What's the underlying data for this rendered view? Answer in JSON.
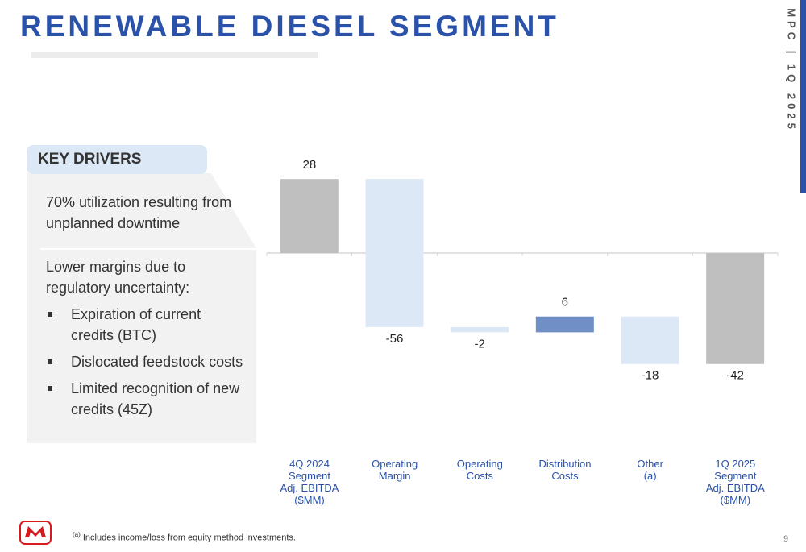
{
  "header": {
    "title": "RENEWABLE DIESEL SEGMENT",
    "side_label": "MPC | 1Q 2025"
  },
  "key_drivers": {
    "heading": "KEY DRIVERS",
    "points": [
      "70% utilization resulting from unplanned downtime",
      "Lower margins due to regulatory uncertainty:"
    ],
    "bullets": [
      "Expiration of current credits (BTC)",
      "Dislocated feedstock costs",
      "Limited recognition of new credits (45Z)"
    ]
  },
  "chart_data": {
    "type": "waterfall",
    "categories": [
      "4Q 2024\nSegment\nAdj. EBITDA\n($MM)",
      "Operating\nMargin",
      "Operating\nCosts",
      "Distribution\nCosts",
      "Other\n(a)",
      "1Q 2025\nSegment\nAdj. EBITDA\n($MM)"
    ],
    "values": [
      28,
      -56,
      -2,
      6,
      -18,
      -42
    ],
    "measure": [
      "total",
      "relative",
      "relative",
      "relative",
      "relative",
      "total"
    ],
    "colors": {
      "total": "#bfbfbf",
      "increase": "#6f8fc6",
      "decrease": "#dce8f5"
    },
    "ylim": [
      -75,
      50
    ]
  },
  "footer": {
    "footnote_marker": "(a)",
    "footnote": "Includes income/loss from equity method investments.",
    "page": "9"
  }
}
